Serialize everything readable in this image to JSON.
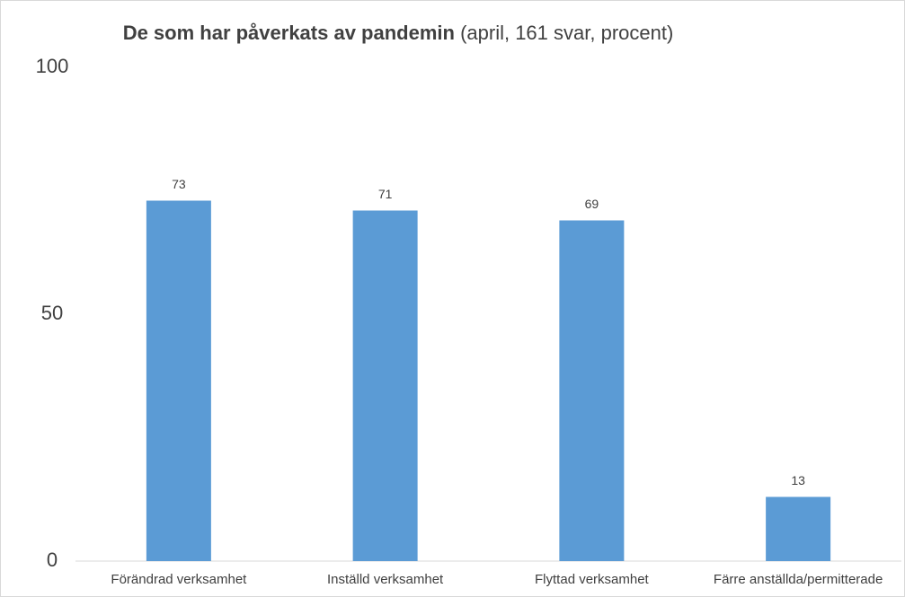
{
  "chart_data": {
    "type": "bar",
    "title": "De som har påverkats av pandemin",
    "subtitle": "(april, 161 svar, procent)",
    "categories": [
      "Förändrad verksamhet",
      "Inställd verksamhet",
      "Flyttad verksamhet",
      "Färre anställda/permitterade"
    ],
    "values": [
      73,
      71,
      69,
      13
    ],
    "color": "#5b9bd5",
    "ylim": [
      0,
      100
    ],
    "yticks": [
      0,
      50,
      100
    ],
    "grid": false
  }
}
